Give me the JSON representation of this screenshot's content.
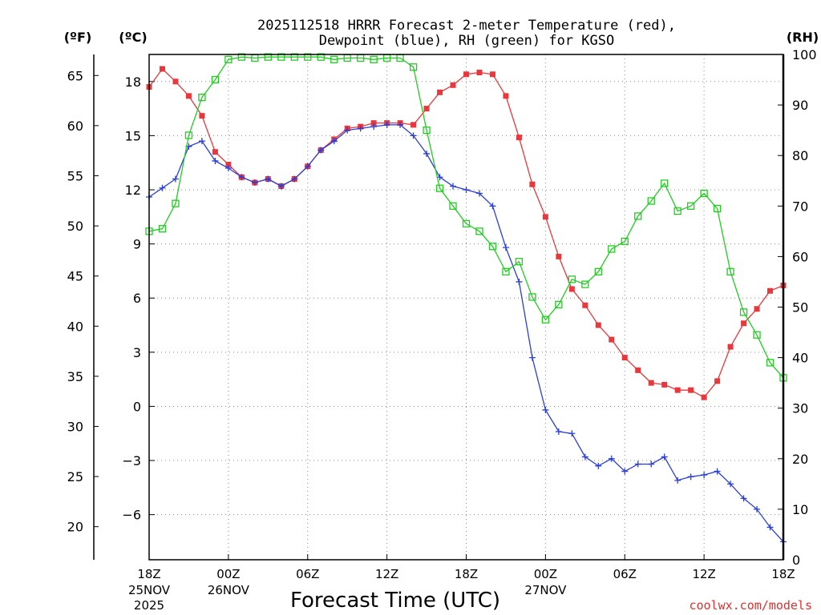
{
  "colors": {
    "temperature": "#e8383d",
    "dewpoint": "#2b3fd6",
    "rh": "#22cc22"
  },
  "chart_data": {
    "type": "line",
    "title_line1": "2025112518 HRRR Forecast 2-meter Temperature (red),",
    "title_line2": "Dewpoint (blue), RH (green) for KGSO",
    "xlabel": "Forecast Time (UTC)",
    "credit": "coolwx.com/models",
    "unit_f": "(ºF)",
    "unit_c": "(ºC)",
    "unit_rh": "(RH)",
    "forecast_hours": [
      0,
      1,
      2,
      3,
      4,
      5,
      6,
      7,
      8,
      9,
      10,
      11,
      12,
      13,
      14,
      15,
      16,
      17,
      18,
      19,
      20,
      21,
      22,
      23,
      24,
      25,
      26,
      27,
      28,
      29,
      30,
      31,
      32,
      33,
      34,
      35,
      36,
      37,
      38,
      39,
      40,
      41,
      42,
      43,
      44,
      45,
      46,
      47,
      48
    ],
    "x_ticks": [
      {
        "hour": 0,
        "label": "18Z",
        "sub1": "25NOV",
        "sub2": "2025"
      },
      {
        "hour": 6,
        "label": "00Z",
        "sub1": "26NOV",
        "sub2": ""
      },
      {
        "hour": 12,
        "label": "06Z",
        "sub1": "",
        "sub2": ""
      },
      {
        "hour": 18,
        "label": "12Z",
        "sub1": "",
        "sub2": ""
      },
      {
        "hour": 24,
        "label": "18Z",
        "sub1": "",
        "sub2": ""
      },
      {
        "hour": 30,
        "label": "00Z",
        "sub1": "27NOV",
        "sub2": ""
      },
      {
        "hour": 36,
        "label": "06Z",
        "sub1": "",
        "sub2": ""
      },
      {
        "hour": 42,
        "label": "12Z",
        "sub1": "",
        "sub2": ""
      },
      {
        "hour": 48,
        "label": "18Z",
        "sub1": "",
        "sub2": ""
      }
    ],
    "x_range": [
      0,
      48
    ],
    "celsius_range": [
      -8.5,
      19.5
    ],
    "fahrenheit_range": [
      16.7,
      67.1
    ],
    "rh_range": [
      0,
      100
    ],
    "celsius_ticks": [
      18,
      15,
      12,
      9,
      6,
      3,
      0,
      -3,
      -6
    ],
    "celsius_tick_labels": [
      "18",
      "15",
      "12",
      "9",
      "6",
      "3",
      "0",
      "−3",
      "−6"
    ],
    "fahrenheit_ticks": [
      65,
      60,
      55,
      50,
      45,
      40,
      35,
      30,
      25,
      20
    ],
    "rh_ticks": [
      100,
      90,
      80,
      70,
      60,
      50,
      40,
      30,
      20,
      10,
      0
    ],
    "series": [
      {
        "name": "Temperature (°C)",
        "color_key": "temperature",
        "marker": "filled-square",
        "values": [
          17.7,
          18.7,
          18.0,
          17.2,
          16.1,
          14.1,
          13.4,
          12.7,
          12.4,
          12.6,
          12.2,
          12.6,
          13.3,
          14.2,
          14.8,
          15.4,
          15.5,
          15.7,
          15.7,
          15.7,
          15.6,
          16.5,
          17.4,
          17.8,
          18.4,
          18.5,
          18.4,
          17.2,
          14.9,
          12.3,
          10.5,
          8.3,
          6.5,
          5.6,
          4.5,
          3.7,
          2.7,
          2.0,
          1.3,
          1.2,
          0.9,
          0.9,
          0.5,
          1.4,
          3.3,
          4.6,
          5.4,
          6.4,
          6.7
        ]
      },
      {
        "name": "Dewpoint (°C)",
        "color_key": "dewpoint",
        "marker": "plus",
        "values": [
          11.6,
          12.1,
          12.6,
          14.4,
          14.7,
          13.6,
          13.2,
          12.7,
          12.4,
          12.6,
          12.2,
          12.6,
          13.3,
          14.2,
          14.7,
          15.3,
          15.4,
          15.5,
          15.6,
          15.6,
          15.0,
          14.0,
          12.7,
          12.2,
          12.0,
          11.8,
          11.1,
          8.8,
          6.9,
          2.7,
          -0.2,
          -1.4,
          -1.5,
          -2.8,
          -3.3,
          -2.9,
          -3.6,
          -3.2,
          -3.2,
          -2.8,
          -4.1,
          -3.9,
          -3.8,
          -3.6,
          -4.3,
          -5.1,
          -5.7,
          -6.7,
          -7.5
        ]
      },
      {
        "name": "Relative Humidity (%)",
        "color_key": "rh",
        "marker": "open-square",
        "values": [
          65,
          65.5,
          70.5,
          84,
          91.5,
          95,
          99,
          99.5,
          99.3,
          99.5,
          99.5,
          99.5,
          99.5,
          99.5,
          99,
          99.3,
          99.3,
          99,
          99.3,
          99.3,
          97.5,
          85,
          73.5,
          70,
          66.5,
          65,
          62,
          57,
          59,
          52,
          47.5,
          50.5,
          55.5,
          54.5,
          57,
          61.5,
          63,
          68,
          71,
          74.5,
          69,
          70,
          72.5,
          69.5,
          57,
          49,
          44.5,
          39,
          36
        ]
      }
    ]
  }
}
